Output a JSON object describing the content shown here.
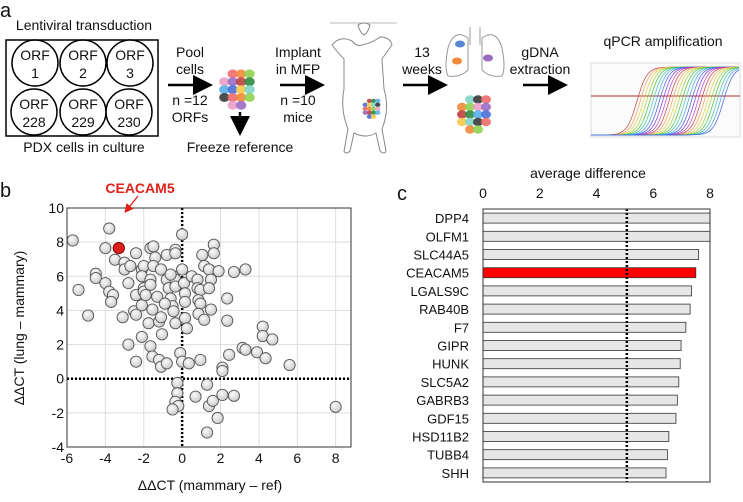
{
  "panel_a": {
    "label": "a",
    "plate_title": "Lentiviral transduction",
    "plate_caption": "PDX cells in culture",
    "wells": [
      {
        "line1": "ORF",
        "line2": "1"
      },
      {
        "line1": "ORF",
        "line2": "2"
      },
      {
        "line1": "ORF",
        "line2": "3"
      },
      {
        "line1": "ORF",
        "line2": "228"
      },
      {
        "line1": "ORF",
        "line2": "229"
      },
      {
        "line1": "ORF",
        "line2": "230"
      }
    ],
    "step_pool": {
      "line1": "Pool",
      "line2": "cells",
      "line3": "n =12",
      "line4": "ORFs"
    },
    "freeze": "Freeze reference",
    "step_implant": {
      "line1": "Implant",
      "line2": "in MFP",
      "line3": "n =10",
      "line4": "mice"
    },
    "step_weeks": {
      "line1": "13",
      "line2": "weeks"
    },
    "step_gdna": {
      "line1": "gDNA",
      "line2": "extraction"
    },
    "qpcr_title": "qPCR amplification"
  },
  "chart_data": [
    {
      "type": "scatter",
      "panel": "b",
      "xlabel": "ΔΔCT (mammary – ref)",
      "ylabel": "ΔΔCT (lung – mammary)",
      "xlim": [
        -6,
        8.8
      ],
      "ylim": [
        -4,
        10
      ],
      "xticks": [
        "-6",
        "-4",
        "-2",
        "0",
        "2",
        "4",
        "6",
        "8"
      ],
      "yticks": [
        "-4",
        "-2",
        "0",
        "2",
        "4",
        "6",
        "8",
        "10"
      ],
      "grid": true,
      "highlight": {
        "label": "CEACAM5",
        "x": -3.3,
        "y": 7.65,
        "color": "#e0201b"
      },
      "points": [
        [
          -5.7,
          8.1
        ],
        [
          -3.8,
          8.8
        ],
        [
          -4.0,
          7.65
        ],
        [
          -5.4,
          5.2
        ],
        [
          -4.5,
          6.15
        ],
        [
          -4.5,
          5.9
        ],
        [
          -4.0,
          5.6
        ],
        [
          -3.8,
          5.1
        ],
        [
          -3.6,
          4.9
        ],
        [
          -3.7,
          4.5
        ],
        [
          -4.9,
          3.7
        ],
        [
          -3.5,
          6.97
        ],
        [
          -3.0,
          6.8
        ],
        [
          -2.4,
          7.35
        ],
        [
          -3.0,
          6.4
        ],
        [
          -2.7,
          6.6
        ],
        [
          -3.1,
          3.6
        ],
        [
          -2.8,
          2.0
        ],
        [
          -2.4,
          1.0
        ],
        [
          -2.8,
          5.6
        ],
        [
          -2.4,
          4.9
        ],
        [
          -2.5,
          3.95
        ],
        [
          -2.4,
          3.75
        ],
        [
          -2.1,
          6.4
        ],
        [
          -2.0,
          6.6
        ],
        [
          -2.1,
          6.0
        ],
        [
          -2.0,
          5.3
        ],
        [
          -2.0,
          5.1
        ],
        [
          -2.1,
          4.3
        ],
        [
          -2.1,
          2.45
        ],
        [
          -1.65,
          7.65
        ],
        [
          -1.5,
          7.75
        ],
        [
          -1.4,
          7.1
        ],
        [
          -1.5,
          6.6
        ],
        [
          -1.65,
          5.8
        ],
        [
          -1.65,
          5.5
        ],
        [
          -1.55,
          4.05
        ],
        [
          -1.75,
          3.25
        ],
        [
          -1.65,
          1.9
        ],
        [
          -1.55,
          1.3
        ],
        [
          -1.2,
          1.1
        ],
        [
          -1.1,
          0.7
        ],
        [
          -0.8,
          0.9
        ],
        [
          -1.05,
          2.6
        ],
        [
          -1.2,
          3.35
        ],
        [
          -1.1,
          3.6
        ],
        [
          -1.3,
          4.8
        ],
        [
          -1.1,
          6.4
        ],
        [
          -0.8,
          7.25
        ],
        [
          -0.8,
          5.8
        ],
        [
          -0.7,
          5.3
        ],
        [
          -0.6,
          4.7
        ],
        [
          -0.5,
          4.25
        ],
        [
          -0.45,
          3.95
        ],
        [
          -0.35,
          7.55
        ],
        [
          -0.35,
          7.35
        ],
        [
          -0.45,
          6.0
        ],
        [
          -0.35,
          5.8
        ],
        [
          -0.35,
          5.4
        ],
        [
          -0.35,
          3.25
        ],
        [
          0,
          8.45
        ],
        [
          0,
          6.4
        ],
        [
          0.1,
          5.6
        ],
        [
          0.15,
          5.0
        ],
        [
          0.15,
          4.5
        ],
        [
          0.15,
          3.55
        ],
        [
          0.25,
          2.95
        ],
        [
          -0.1,
          1.5
        ],
        [
          0,
          1.0
        ],
        [
          0.35,
          0.9
        ],
        [
          -0.25,
          -0.25
        ],
        [
          -0.25,
          -0.85
        ],
        [
          -0.35,
          -1.35
        ],
        [
          -0.2,
          -1.6
        ],
        [
          -0.5,
          -1.8
        ],
        [
          0.5,
          6.0
        ],
        [
          0.8,
          5.8
        ],
        [
          0.8,
          5.3
        ],
        [
          0.95,
          5.2
        ],
        [
          0.85,
          4.6
        ],
        [
          0.95,
          4.4
        ],
        [
          0.85,
          3.8
        ],
        [
          1.15,
          3.45
        ],
        [
          1.05,
          7.25
        ],
        [
          1.15,
          6.6
        ],
        [
          1.4,
          6.4
        ],
        [
          1.5,
          5.8
        ],
        [
          1.4,
          5.3
        ],
        [
          1.5,
          4.05
        ],
        [
          1.65,
          7.85
        ],
        [
          1.65,
          7.35
        ],
        [
          1.9,
          6.3
        ],
        [
          0.95,
          1.1
        ],
        [
          0.7,
          -1.05
        ],
        [
          1.3,
          -0.35
        ],
        [
          1.4,
          -1.6
        ],
        [
          1.6,
          -1.3
        ],
        [
          1.85,
          -2.3
        ],
        [
          1.3,
          -3.15
        ],
        [
          2.1,
          0.65
        ],
        [
          2.1,
          0.45
        ],
        [
          2.1,
          -0.95
        ],
        [
          2.7,
          -1.0
        ],
        [
          2.35,
          3.4
        ],
        [
          2.35,
          4.7
        ],
        [
          2.7,
          6.25
        ],
        [
          2.45,
          1.4
        ],
        [
          3.3,
          6.4
        ],
        [
          3.15,
          1.8
        ],
        [
          3.3,
          1.7
        ],
        [
          4.2,
          3.05
        ],
        [
          4.2,
          2.5
        ],
        [
          4.7,
          2.3
        ],
        [
          3.9,
          1.55
        ],
        [
          4.35,
          1.2
        ],
        [
          5.6,
          0.8
        ],
        [
          8.0,
          -1.65
        ],
        [
          -0.6,
          6.1
        ],
        [
          -0.9,
          4.4
        ],
        [
          -1.9,
          4.9
        ]
      ],
      "reference_lines": {
        "x": 0,
        "y": 0
      }
    },
    {
      "type": "bar",
      "panel": "c",
      "orientation": "horizontal",
      "title": "average difference",
      "xlim": [
        0,
        8
      ],
      "xticks": [
        "0",
        "2",
        "4",
        "6",
        "8"
      ],
      "reference_line": 5.07,
      "categories": [
        "DPP4",
        "OLFM1",
        "SLC44A5",
        "CEACAM5",
        "LGALS9C",
        "RAB40B",
        "F7",
        "GIPR",
        "HUNK",
        "SLC5A2",
        "GABRB3",
        "GDF15",
        "HSD11B2",
        "TUBB4",
        "SHH"
      ],
      "values": [
        8.0,
        8.0,
        7.6,
        7.5,
        7.35,
        7.3,
        7.15,
        6.98,
        6.95,
        6.9,
        6.85,
        6.8,
        6.55,
        6.5,
        6.45
      ],
      "highlight": "CEACAM5",
      "colors": {
        "bar": "#e6e6e6",
        "highlight": "#ff0000"
      }
    }
  ],
  "panel_b": {
    "label": "b"
  },
  "panel_c": {
    "label": "c"
  }
}
